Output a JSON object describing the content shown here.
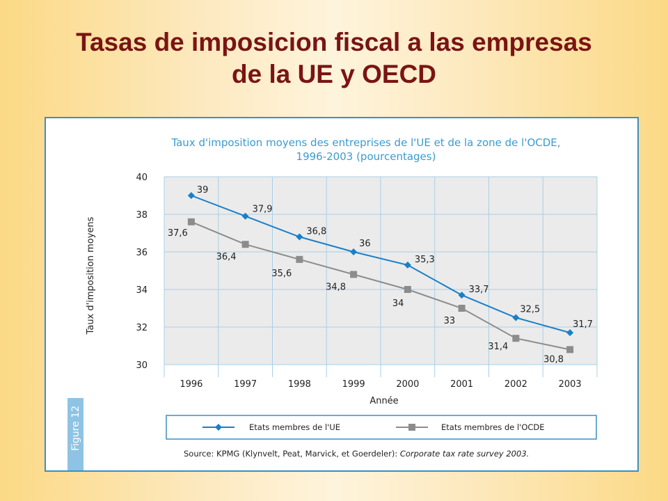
{
  "slide": {
    "title_line1": "Tasas de imposicion fiscal a las empresas",
    "title_line2": "de la UE y OECD"
  },
  "chart_data": {
    "type": "line",
    "title_line1": "Taux d'imposition moyens des entreprises de l'UE et de la zone de l'OCDE,",
    "title_line2": "1996-2003 (pourcentages)",
    "xlabel": "Année",
    "ylabel": "Taux d'imposition moyens",
    "categories": [
      "1996",
      "1997",
      "1998",
      "1999",
      "2000",
      "2001",
      "2002",
      "2003"
    ],
    "ylim": [
      30,
      40
    ],
    "yticks": [
      30,
      32,
      34,
      36,
      38,
      40
    ],
    "grid": true,
    "legend_position": "bottom",
    "series": [
      {
        "name": "Etats membres de l'UE",
        "values": [
          39,
          37.9,
          36.8,
          36,
          35.3,
          33.7,
          32.5,
          31.7
        ],
        "labels": [
          "39",
          "37,9",
          "36,8",
          "36",
          "35,3",
          "33,7",
          "32,5",
          "31,7"
        ],
        "color": "#1a7fc8",
        "marker": "diamond"
      },
      {
        "name": "Etats membres de l'OCDE",
        "values": [
          37.6,
          36.4,
          35.6,
          34.8,
          34,
          33,
          31.4,
          30.8
        ],
        "labels": [
          "37,6",
          "36,4",
          "35,6",
          "34,8",
          "34",
          "33",
          "31,4",
          "30,8"
        ],
        "color": "#8c8c8c",
        "marker": "square"
      }
    ],
    "source_plain": "Source: KPMG (Klynvelt, Peat, Marvick, et Goerdeler): ",
    "source_italic": "Corporate tax rate survey 2003.",
    "figure_tab": "Figure 12",
    "colors": {
      "plot_background": "#ebebeb",
      "gridline": "#a9cfe6",
      "title": "#3a9bd0",
      "frame": "#3a8fc4",
      "figure_tab": "#8fc3e3"
    }
  }
}
